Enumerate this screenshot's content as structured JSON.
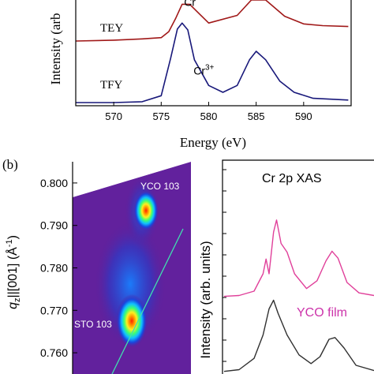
{
  "panel_labels": {
    "b": "(b)"
  },
  "colors": {
    "tey": "#a01818",
    "tfy": "#18187a",
    "yco_film": "#e0409a",
    "substrate": "#303030",
    "rsm_background": "#5a1e9a",
    "rsm_line": "#40e0b0",
    "yco_label": "#cc33aa"
  },
  "chart_data": [
    {
      "type": "line",
      "panel": "a",
      "title": "",
      "xlabel": "Energy (eV)",
      "ylabel": "Intensity (arb",
      "xlim": [
        566,
        595
      ],
      "xticks": [
        570,
        575,
        580,
        585,
        590
      ],
      "grid": false,
      "annotations": [
        {
          "text": "Cr",
          "x": 577.4,
          "y": 1.13
        },
        {
          "text": "Cr",
          "sup": "3+",
          "x": 578.4,
          "y": 0.33
        }
      ],
      "series": [
        {
          "name": "TEY",
          "color": "#a01818",
          "x": [
            566,
            570,
            573,
            575,
            575.8,
            576.5,
            577.2,
            578,
            580,
            583,
            584.5,
            586,
            588,
            590,
            592,
            594.7
          ],
          "y": [
            0.72,
            0.73,
            0.745,
            0.76,
            0.83,
            0.98,
            1.15,
            1.15,
            0.93,
            1.02,
            1.2,
            1.2,
            1.01,
            0.92,
            0.9,
            0.89
          ]
        },
        {
          "name": "TFY",
          "color": "#18187a",
          "x": [
            566,
            570,
            573,
            575,
            576,
            576.7,
            577.2,
            577.8,
            578.5,
            580,
            581.5,
            583,
            584.3,
            585,
            586,
            587.5,
            589,
            591,
            594.7
          ],
          "y": [
            0.0,
            0.0,
            0.01,
            0.08,
            0.52,
            0.86,
            0.93,
            0.85,
            0.5,
            0.2,
            0.12,
            0.2,
            0.5,
            0.6,
            0.5,
            0.25,
            0.12,
            0.05,
            0.03
          ]
        }
      ]
    },
    {
      "type": "heatmap",
      "panel": "b-left",
      "ylabel_symbol": "q",
      "ylabel_sub": "z",
      "ylabel_rest": "||[001] (Å",
      "ylabel_sup": "-1",
      "ylabel_end": ")",
      "ylim": [
        0.755,
        0.805
      ],
      "yticks": [
        "0.800",
        "0.790",
        "0.780",
        "0.770",
        "0.760"
      ],
      "peaks": [
        {
          "label": "YCO 103",
          "qz": 0.7935,
          "rel_x": 0.62
        },
        {
          "label": "STO 103",
          "qz": 0.7675,
          "rel_x": 0.5
        }
      ]
    },
    {
      "type": "line",
      "panel": "b-right",
      "title": "Cr 2p XAS",
      "ylabel": "Intensity (arb. units)",
      "series": [
        {
          "name": "YCO film",
          "color": "#e0409a",
          "x": [
            0,
            0.1,
            0.2,
            0.26,
            0.28,
            0.3,
            0.33,
            0.35,
            0.38,
            0.42,
            0.47,
            0.55,
            0.62,
            0.68,
            0.72,
            0.76,
            0.82,
            0.9,
            1.0
          ],
          "y": [
            0.04,
            0.05,
            0.1,
            0.3,
            0.47,
            0.3,
            0.78,
            0.92,
            0.65,
            0.55,
            0.3,
            0.13,
            0.22,
            0.45,
            0.56,
            0.48,
            0.2,
            0.08,
            0.05
          ]
        },
        {
          "name": "",
          "color": "#303030",
          "x": [
            0,
            0.1,
            0.2,
            0.26,
            0.3,
            0.33,
            0.36,
            0.42,
            0.5,
            0.58,
            0.64,
            0.7,
            0.74,
            0.8,
            0.88,
            1.0
          ],
          "y": [
            0.03,
            0.05,
            0.18,
            0.45,
            0.75,
            0.85,
            0.7,
            0.45,
            0.22,
            0.12,
            0.2,
            0.4,
            0.42,
            0.3,
            0.1,
            0.04
          ]
        }
      ]
    }
  ]
}
